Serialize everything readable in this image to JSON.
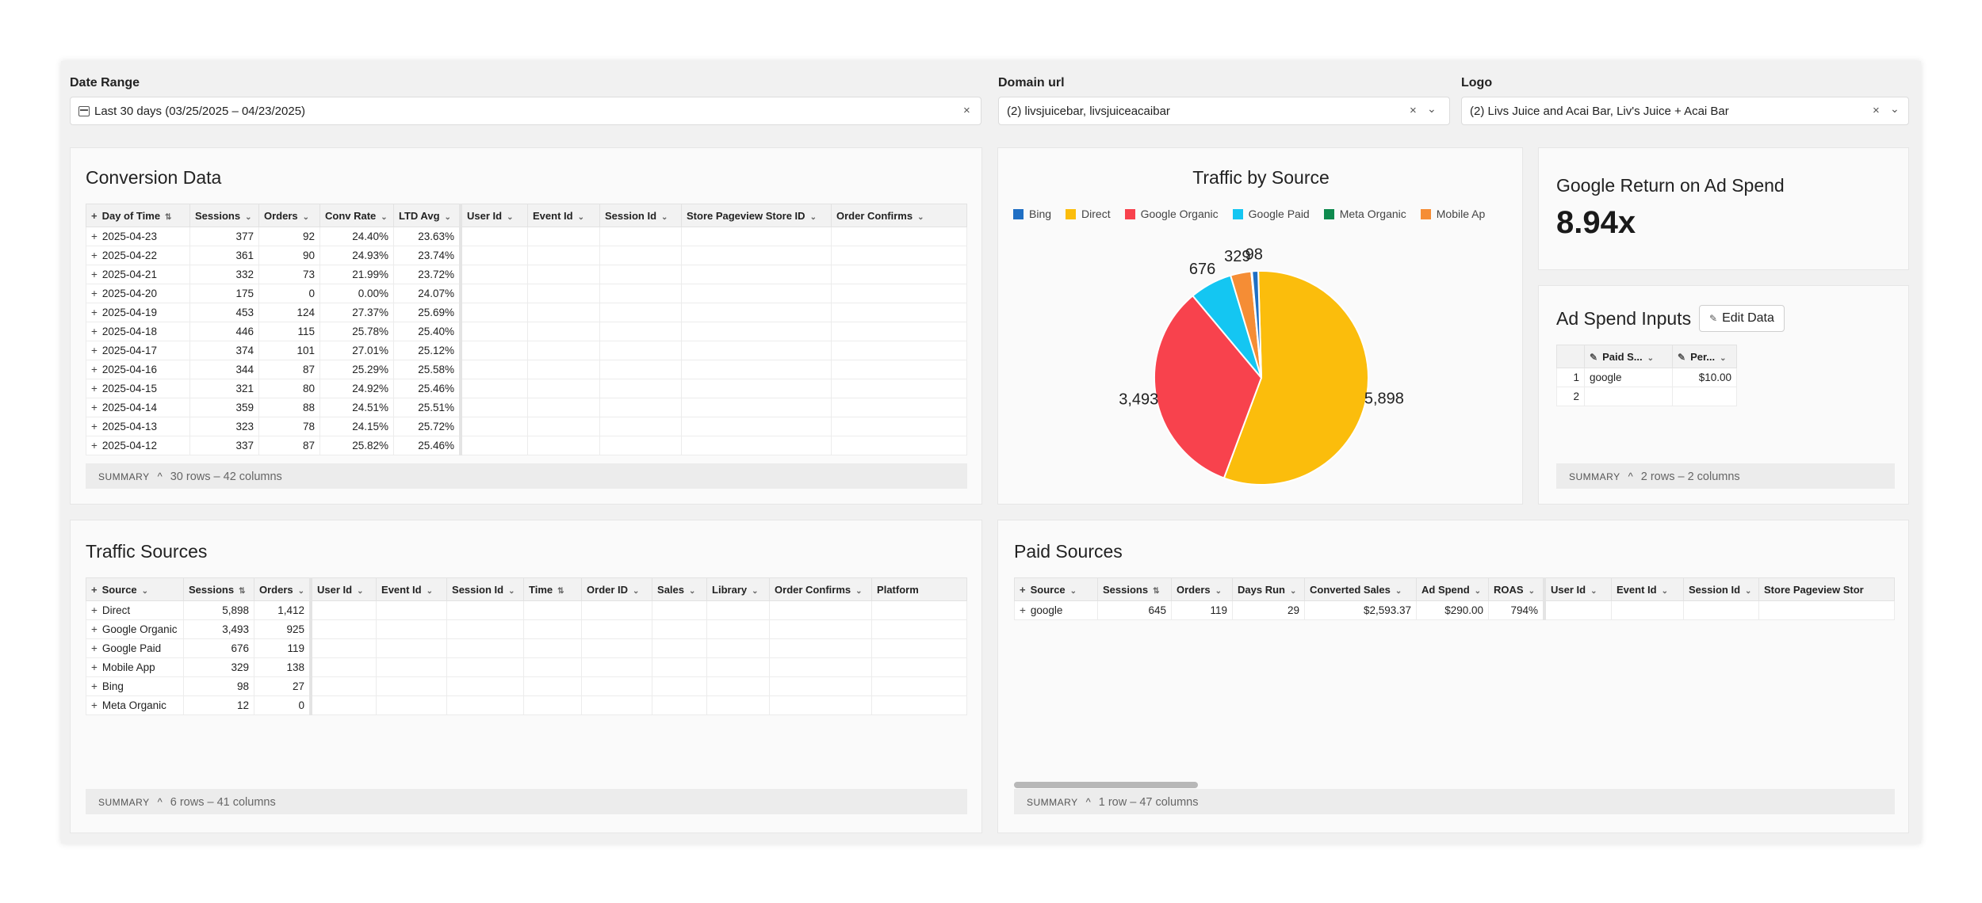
{
  "filters": {
    "date_range": {
      "label": "Date Range",
      "value": "Last 30 days (03/25/2025 – 04/23/2025)"
    },
    "domain_url": {
      "label": "Domain url",
      "value": "(2) livsjuicebar, livsjuiceacaibar"
    },
    "logo": {
      "label": "Logo",
      "value": "(2) Livs Juice and Acai Bar, Liv's Juice + Acai Bar"
    }
  },
  "conversion": {
    "title": "Conversion Data",
    "columns": [
      "Day of Time",
      "Sessions",
      "Orders",
      "Conv Rate",
      "LTD Avg",
      "User Id",
      "Event Id",
      "Session Id",
      "Store Pageview Store ID",
      "Order Confirms"
    ],
    "rows": [
      [
        "2025-04-23",
        "377",
        "92",
        "24.40%",
        "23.63%"
      ],
      [
        "2025-04-22",
        "361",
        "90",
        "24.93%",
        "23.74%"
      ],
      [
        "2025-04-21",
        "332",
        "73",
        "21.99%",
        "23.72%"
      ],
      [
        "2025-04-20",
        "175",
        "0",
        "0.00%",
        "24.07%"
      ],
      [
        "2025-04-19",
        "453",
        "124",
        "27.37%",
        "25.69%"
      ],
      [
        "2025-04-18",
        "446",
        "115",
        "25.78%",
        "25.40%"
      ],
      [
        "2025-04-17",
        "374",
        "101",
        "27.01%",
        "25.12%"
      ],
      [
        "2025-04-16",
        "344",
        "87",
        "25.29%",
        "25.58%"
      ],
      [
        "2025-04-15",
        "321",
        "80",
        "24.92%",
        "25.46%"
      ],
      [
        "2025-04-14",
        "359",
        "88",
        "24.51%",
        "25.51%"
      ],
      [
        "2025-04-13",
        "323",
        "78",
        "24.15%",
        "25.72%"
      ],
      [
        "2025-04-12",
        "337",
        "87",
        "25.82%",
        "25.46%"
      ]
    ],
    "summary_label": "SUMMARY",
    "summary_meta": "30 rows – 42 columns"
  },
  "traffic_chart": {
    "title": "Traffic by Source",
    "legend": [
      "Bing",
      "Direct",
      "Google Organic",
      "Google Paid",
      "Meta Organic",
      "Mobile Ap"
    ]
  },
  "chart_data": {
    "type": "pie",
    "title": "Traffic by Source",
    "categories": [
      "Bing",
      "Direct",
      "Google Organic",
      "Google Paid",
      "Meta Organic",
      "Mobile App"
    ],
    "values": [
      98,
      5898,
      3493,
      676,
      12,
      329
    ],
    "colors": [
      "#1f6fc4",
      "#fbbd0c",
      "#f8424d",
      "#14c6f2",
      "#0e8a4e",
      "#f58d35"
    ],
    "legend": "top"
  },
  "roas": {
    "title": "Google Return on Ad Spend",
    "value": "8.94x"
  },
  "ad_spend": {
    "title": "Ad Spend Inputs",
    "edit_label": "Edit Data",
    "columns": [
      "Paid S...",
      "Per..."
    ],
    "rows": [
      [
        "1",
        "google",
        "$10.00"
      ],
      [
        "2",
        "",
        ""
      ]
    ],
    "summary_label": "SUMMARY",
    "summary_meta": "2 rows – 2 columns"
  },
  "traffic_sources": {
    "title": "Traffic Sources",
    "columns": [
      "Source",
      "Sessions",
      "Orders",
      "User Id",
      "Event Id",
      "Session Id",
      "Time",
      "Order ID",
      "Sales",
      "Library",
      "Order Confirms",
      "Platform"
    ],
    "rows": [
      [
        "Direct",
        "5,898",
        "1,412"
      ],
      [
        "Google Organic",
        "3,493",
        "925"
      ],
      [
        "Google Paid",
        "676",
        "119"
      ],
      [
        "Mobile App",
        "329",
        "138"
      ],
      [
        "Bing",
        "98",
        "27"
      ],
      [
        "Meta Organic",
        "12",
        "0"
      ]
    ],
    "summary_label": "SUMMARY",
    "summary_meta": "6 rows – 41 columns"
  },
  "paid_sources": {
    "title": "Paid Sources",
    "columns": [
      "Source",
      "Sessions",
      "Orders",
      "Days Run",
      "Converted Sales",
      "Ad Spend",
      "ROAS",
      "User Id",
      "Event Id",
      "Session Id",
      "Store Pageview Stor"
    ],
    "rows": [
      [
        "google",
        "645",
        "119",
        "29",
        "$2,593.37",
        "$290.00",
        "794%"
      ]
    ],
    "summary_label": "SUMMARY",
    "summary_meta": "1 row – 47 columns"
  }
}
